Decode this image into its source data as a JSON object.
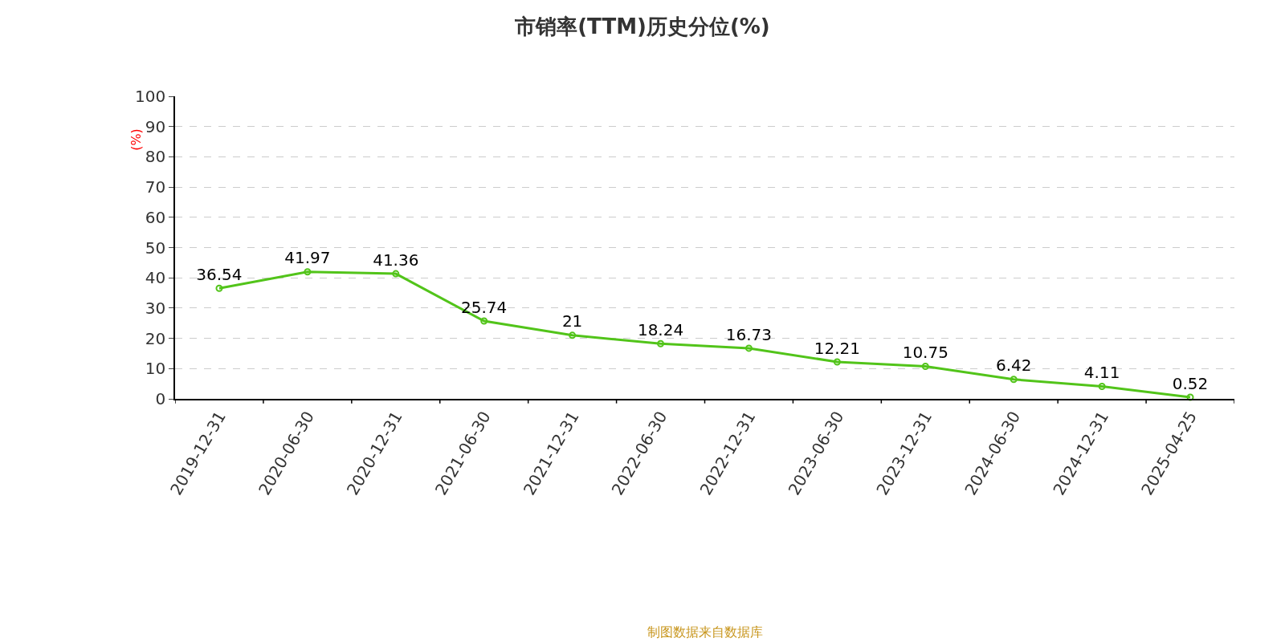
{
  "chart_data": {
    "type": "line",
    "title": "市销率(TTM)历史分位(%)",
    "ylabel": "(%)",
    "categories": [
      "2019-12-31",
      "2020-06-30",
      "2020-12-31",
      "2021-06-30",
      "2021-12-31",
      "2022-06-30",
      "2022-12-31",
      "2023-06-30",
      "2023-12-31",
      "2024-06-30",
      "2024-12-31",
      "2025-04-25"
    ],
    "series": [
      {
        "color": "#52c41a",
        "values": [
          36.54,
          41.97,
          41.36,
          25.74,
          21,
          18.24,
          16.73,
          12.21,
          10.75,
          6.42,
          4.11,
          0.52
        ]
      }
    ],
    "ylim": [
      0,
      100
    ],
    "yticks": [
      0,
      10,
      20,
      30,
      40,
      50,
      60,
      70,
      80,
      90,
      100
    ],
    "grid": "y",
    "legend": false,
    "marker": "circle",
    "line_style": "solid",
    "data_labels": true,
    "annotations": [
      "制图数据来自数据库"
    ]
  }
}
